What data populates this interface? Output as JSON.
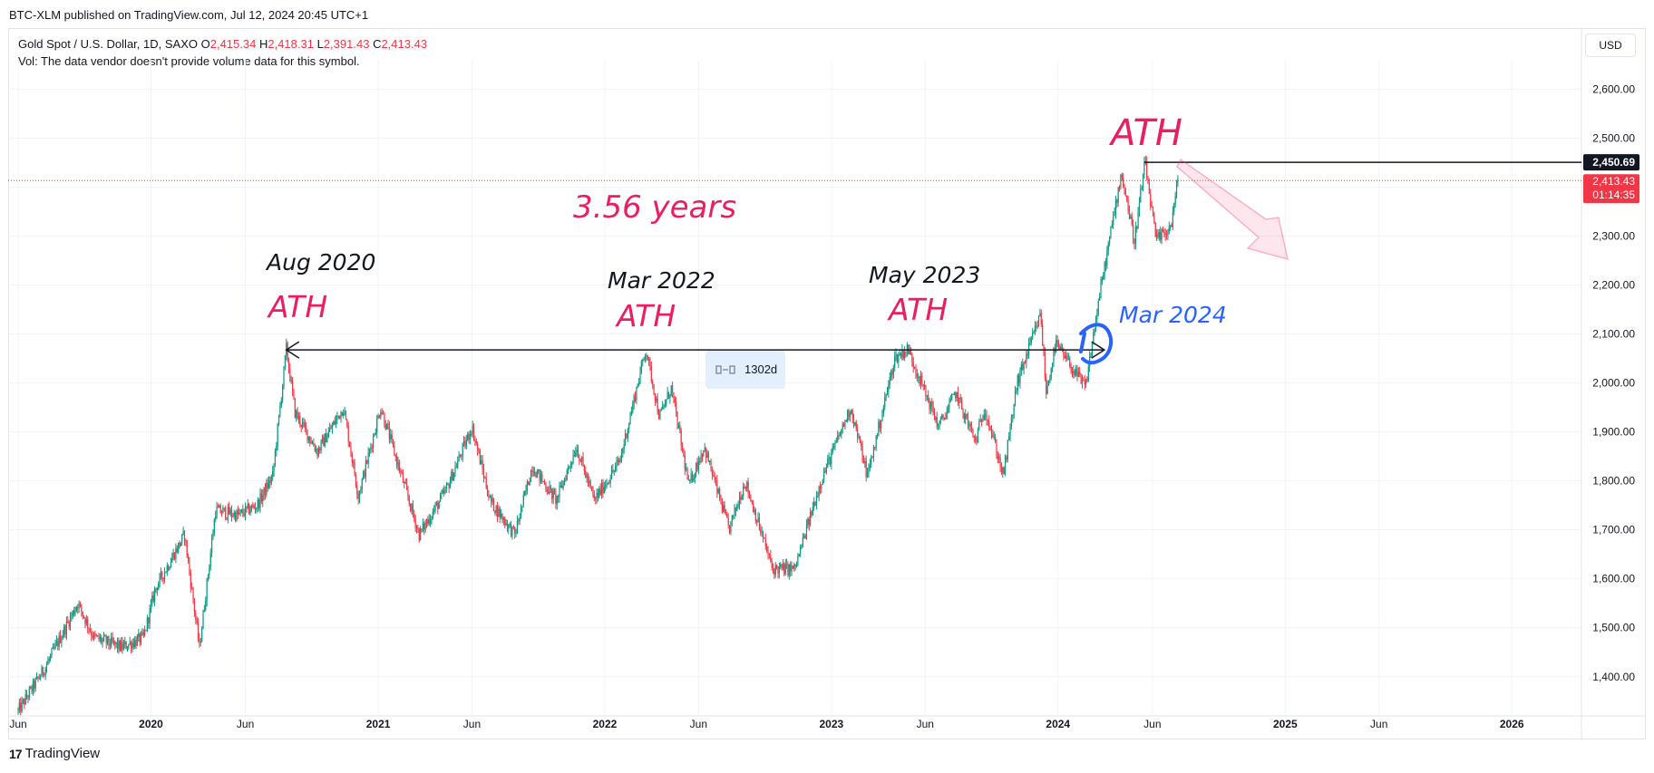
{
  "header": {
    "published": "BTC-XLM published on TradingView.com, Jul 12, 2024 20:45 UTC+1"
  },
  "legend": {
    "symbol": "Gold Spot / U.S. Dollar, 1D, SAXO",
    "open_label": "O",
    "open": "2,415.34",
    "high_label": "H",
    "high": "2,418.31",
    "low_label": "L",
    "low": "2,391.43",
    "close_label": "C",
    "close": "2,413.43",
    "volume_note": "Vol: The data vendor doesn't provide volume data for this symbol."
  },
  "currency": "USD",
  "footer": {
    "logo": "17",
    "brand": "TradingView"
  },
  "colors": {
    "up": "#089981",
    "down": "#f23645",
    "annotation_pink": "#e91e63",
    "annotation_blue": "#2962ff",
    "price_tag": "#f23645"
  },
  "chart_data": {
    "type": "candlestick",
    "title": "Gold Spot / U.S. Dollar, 1D, SAXO",
    "x_tick_labels": [
      "Jun",
      "2020",
      "Jun",
      "2021",
      "Jun",
      "2022",
      "Jun",
      "2023",
      "Jun",
      "2024",
      "Jun",
      "2025",
      "Jun",
      "2026"
    ],
    "x_tick_dates": [
      "2019-06-01",
      "2020-01-01",
      "2020-06-01",
      "2021-01-01",
      "2021-06-01",
      "2022-01-01",
      "2022-06-01",
      "2023-01-01",
      "2023-06-01",
      "2024-01-01",
      "2024-06-01",
      "2025-01-01",
      "2025-06-01",
      "2026-01-01"
    ],
    "y_tick_labels": [
      "2,600.00",
      "2,500.00",
      "2,400.00",
      "2,300.00",
      "2,200.00",
      "2,100.00",
      "2,000.00",
      "1,900.00",
      "1,800.00",
      "1,700.00",
      "1,600.00",
      "1,500.00",
      "1,400.00"
    ],
    "ylim": [
      1320,
      2660
    ],
    "xlim": [
      "2019-06-01",
      "2026-04-10"
    ],
    "price_path": [
      [
        "2019-06-01",
        1330
      ],
      [
        "2019-07-15",
        1420
      ],
      [
        "2019-09-05",
        1550
      ],
      [
        "2019-10-01",
        1480
      ],
      [
        "2019-11-15",
        1460
      ],
      [
        "2019-12-20",
        1480
      ],
      [
        "2020-01-08",
        1580
      ],
      [
        "2020-02-24",
        1690
      ],
      [
        "2020-03-19",
        1460
      ],
      [
        "2020-04-14",
        1740
      ],
      [
        "2020-05-20",
        1730
      ],
      [
        "2020-06-20",
        1750
      ],
      [
        "2020-07-15",
        1810
      ],
      [
        "2020-08-06",
        2070
      ],
      [
        "2020-08-20",
        1940
      ],
      [
        "2020-09-25",
        1860
      ],
      [
        "2020-11-06",
        1950
      ],
      [
        "2020-11-30",
        1770
      ],
      [
        "2021-01-05",
        1950
      ],
      [
        "2021-03-08",
        1690
      ],
      [
        "2021-04-20",
        1780
      ],
      [
        "2021-06-01",
        1910
      ],
      [
        "2021-06-30",
        1760
      ],
      [
        "2021-08-09",
        1690
      ],
      [
        "2021-09-06",
        1830
      ],
      [
        "2021-10-15",
        1760
      ],
      [
        "2021-11-16",
        1870
      ],
      [
        "2021-12-15",
        1760
      ],
      [
        "2022-01-25",
        1840
      ],
      [
        "2022-03-08",
        2070
      ],
      [
        "2022-03-30",
        1930
      ],
      [
        "2022-04-18",
        1990
      ],
      [
        "2022-05-16",
        1790
      ],
      [
        "2022-06-10",
        1870
      ],
      [
        "2022-07-20",
        1700
      ],
      [
        "2022-08-15",
        1800
      ],
      [
        "2022-09-28",
        1620
      ],
      [
        "2022-11-03",
        1620
      ],
      [
        "2022-12-15",
        1800
      ],
      [
        "2023-02-01",
        1950
      ],
      [
        "2023-02-28",
        1810
      ],
      [
        "2023-04-13",
        2050
      ],
      [
        "2023-05-04",
        2070
      ],
      [
        "2023-06-23",
        1910
      ],
      [
        "2023-07-20",
        1980
      ],
      [
        "2023-08-21",
        1880
      ],
      [
        "2023-09-05",
        1950
      ],
      [
        "2023-10-05",
        1810
      ],
      [
        "2023-10-27",
        2000
      ],
      [
        "2023-12-04",
        2140
      ],
      [
        "2023-12-13",
        1980
      ],
      [
        "2023-12-28",
        2080
      ],
      [
        "2024-02-14",
        1990
      ],
      [
        "2024-03-08",
        2180
      ],
      [
        "2024-04-12",
        2430
      ],
      [
        "2024-05-03",
        2290
      ],
      [
        "2024-05-20",
        2450
      ],
      [
        "2024-06-07",
        2290
      ],
      [
        "2024-07-01",
        2320
      ],
      [
        "2024-07-12",
        2413
      ]
    ],
    "last_price": {
      "value": 2413.43,
      "label": "2,413.43",
      "countdown": "01:14:35"
    },
    "ath_level": {
      "value": 2450.69,
      "label": "2,450.69"
    },
    "range_measure": {
      "label": "1302d",
      "from": "2020-08-06",
      "to": "2024-03-01",
      "price": 2075
    }
  },
  "annotations": {
    "ath_top": "ATH",
    "duration": "3.56 years",
    "aug2020_date": "Aug 2020",
    "aug2020_ath": "ATH",
    "mar2022_date": "Mar 2022",
    "mar2022_ath": "ATH",
    "may2023_date": "May 2023",
    "may2023_ath": "ATH",
    "mar2024_date": "Mar 2024"
  }
}
